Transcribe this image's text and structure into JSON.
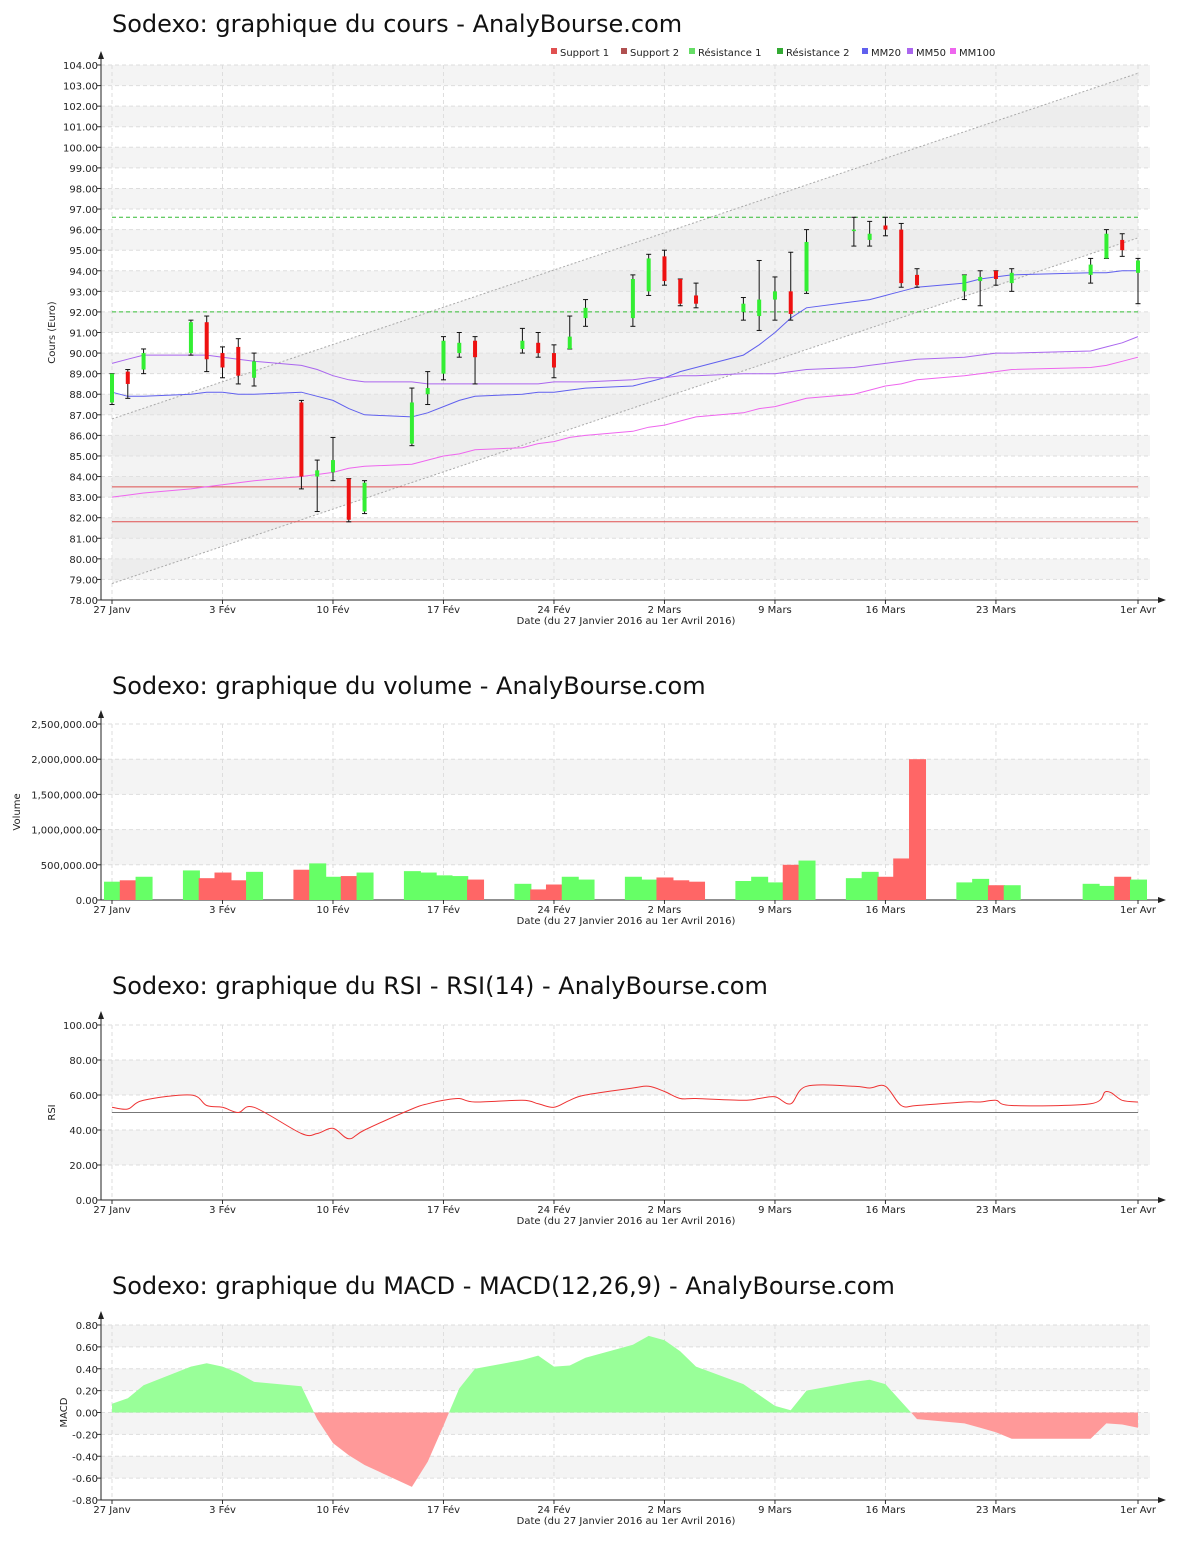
{
  "x_ticks": [
    "27 Janv",
    "3 Fév",
    "10 Fév",
    "17 Fév",
    "24 Fév",
    "2 Mars",
    "9 Mars",
    "16 Mars",
    "23 Mars",
    "1er Avr"
  ],
  "x_axis_label": "Date (du 27 Janvier 2016 au 1er Avril 2016)",
  "dates": [
    "2016-01-27",
    "2016-01-28",
    "2016-01-29",
    "2016-02-01",
    "2016-02-02",
    "2016-02-03",
    "2016-02-04",
    "2016-02-05",
    "2016-02-08",
    "2016-02-09",
    "2016-02-10",
    "2016-02-11",
    "2016-02-12",
    "2016-02-15",
    "2016-02-16",
    "2016-02-17",
    "2016-02-18",
    "2016-02-19",
    "2016-02-22",
    "2016-02-23",
    "2016-02-24",
    "2016-02-25",
    "2016-02-26",
    "2016-02-29",
    "2016-03-01",
    "2016-03-02",
    "2016-03-03",
    "2016-03-04",
    "2016-03-07",
    "2016-03-08",
    "2016-03-09",
    "2016-03-10",
    "2016-03-11",
    "2016-03-14",
    "2016-03-15",
    "2016-03-16",
    "2016-03-17",
    "2016-03-18",
    "2016-03-21",
    "2016-03-22",
    "2016-03-23",
    "2016-03-24",
    "2016-03-29",
    "2016-03-30",
    "2016-03-31",
    "2016-04-01"
  ],
  "colors": {
    "up": "#33ee33",
    "down": "#ee1111",
    "support": "#e05050",
    "resistance": "#33bb33",
    "mm20": "#6060ee",
    "mm50": "#aa66ee",
    "mm100": "#ee66ee",
    "vol_up": "#66ff66",
    "vol_down": "#ff6666",
    "macd_pos": "#99ff99",
    "macd_neg": "#ff9999",
    "rsi": "#ee3333"
  },
  "price": {
    "title": "Sodexo: graphique du cours - AnalyBourse.com",
    "legend": [
      {
        "label": "Support 1",
        "color": "#e05050"
      },
      {
        "label": "Support 2",
        "color": "#b05050"
      },
      {
        "label": "Résistance 1",
        "color": "#66dd66"
      },
      {
        "label": "Résistance 2",
        "color": "#33aa33"
      },
      {
        "label": "MM20",
        "color": "#6060ee"
      },
      {
        "label": "MM50",
        "color": "#aa66ee"
      },
      {
        "label": "MM100",
        "color": "#ee66ee"
      }
    ],
    "y_label": "Cours (Euro)",
    "y_ticks": [
      "78.00",
      "79.00",
      "80.00",
      "81.00",
      "82.00",
      "83.00",
      "84.00",
      "85.00",
      "86.00",
      "87.00",
      "88.00",
      "89.00",
      "90.00",
      "91.00",
      "92.00",
      "93.00",
      "94.00",
      "95.00",
      "96.00",
      "97.00",
      "98.00",
      "99.00",
      "100.00",
      "101.00",
      "102.00",
      "103.00",
      "104.00"
    ]
  },
  "volume": {
    "title": "Sodexo: graphique du volume - AnalyBourse.com",
    "y_label": "Volume",
    "y_ticks": [
      "0.00",
      "500,000.00",
      "1,000,000.00",
      "1,500,000.00",
      "2,000,000.00",
      "2,500,000.00"
    ]
  },
  "rsi": {
    "title": "Sodexo: graphique du RSI - RSI(14) - AnalyBourse.com",
    "y_label": "RSI",
    "y_ticks": [
      "0.00",
      "20.00",
      "40.00",
      "60.00",
      "80.00",
      "100.00"
    ]
  },
  "macd": {
    "title": "Sodexo: graphique du MACD - MACD(12,26,9) - AnalyBourse.com",
    "y_label": "MACD",
    "y_ticks": [
      "-0.80",
      "-0.60",
      "-0.40",
      "-0.20",
      "0.00",
      "0.20",
      "0.40",
      "0.60",
      "0.80"
    ]
  },
  "chart_data": [
    {
      "type": "candlestick",
      "title": "Sodexo: graphique du cours - AnalyBourse.com",
      "xlabel": "Date (du 27 Janvier 2016 au 1er Avril 2016)",
      "ylabel": "Cours (Euro)",
      "ylim": [
        78,
        104
      ],
      "ohlc": [
        [
          87.6,
          89.0,
          87.5,
          89.0
        ],
        [
          89.1,
          89.2,
          87.8,
          88.5
        ],
        [
          89.2,
          90.2,
          89.0,
          90.0
        ],
        [
          90.0,
          91.6,
          89.9,
          91.5
        ],
        [
          91.5,
          91.8,
          89.1,
          89.7
        ],
        [
          90.0,
          90.3,
          88.8,
          89.3
        ],
        [
          90.3,
          90.7,
          88.5,
          88.9
        ],
        [
          88.8,
          90.0,
          88.4,
          89.6
        ],
        [
          87.6,
          87.7,
          83.4,
          84.0
        ],
        [
          84.0,
          84.8,
          82.3,
          84.3
        ],
        [
          84.2,
          85.9,
          83.8,
          84.8
        ],
        [
          83.9,
          83.9,
          81.8,
          81.9
        ],
        [
          82.3,
          83.8,
          82.2,
          83.7
        ],
        [
          85.6,
          88.3,
          85.5,
          87.6
        ],
        [
          88.0,
          89.1,
          87.5,
          88.3
        ],
        [
          89.0,
          90.8,
          88.7,
          90.6
        ],
        [
          90.0,
          91.0,
          89.8,
          90.5
        ],
        [
          90.6,
          90.8,
          88.5,
          89.8
        ],
        [
          90.2,
          91.2,
          90.0,
          90.6
        ],
        [
          90.5,
          91.0,
          89.8,
          90.0
        ],
        [
          90.0,
          90.4,
          88.8,
          89.3
        ],
        [
          90.2,
          91.8,
          90.2,
          90.8
        ],
        [
          91.7,
          92.6,
          91.3,
          92.2
        ],
        [
          91.7,
          93.8,
          91.3,
          93.6
        ],
        [
          93.0,
          94.8,
          92.8,
          94.6
        ],
        [
          94.7,
          95.0,
          93.3,
          93.5
        ],
        [
          93.6,
          93.6,
          92.3,
          92.4
        ],
        [
          92.8,
          93.4,
          92.2,
          92.4
        ],
        [
          92.0,
          92.7,
          91.6,
          92.4
        ],
        [
          91.8,
          94.5,
          91.1,
          92.6
        ],
        [
          92.6,
          93.7,
          91.6,
          93.0
        ],
        [
          93.0,
          94.9,
          91.6,
          91.9
        ],
        [
          93.0,
          96.0,
          92.9,
          95.4
        ],
        [
          96.0,
          96.6,
          95.2,
          96.0
        ],
        [
          95.5,
          96.4,
          95.2,
          95.8
        ],
        [
          96.2,
          96.6,
          95.7,
          96.0
        ],
        [
          96.0,
          96.3,
          93.2,
          93.4
        ],
        [
          93.8,
          94.1,
          93.2,
          93.3
        ],
        [
          93.0,
          93.8,
          92.6,
          93.8
        ],
        [
          93.5,
          94.0,
          92.3,
          93.7
        ],
        [
          94.0,
          94.0,
          93.3,
          93.6
        ],
        [
          93.4,
          94.1,
          93.0,
          93.9
        ],
        [
          93.8,
          94.6,
          93.4,
          94.3
        ],
        [
          94.6,
          96.0,
          94.6,
          95.8
        ],
        [
          95.5,
          95.8,
          94.7,
          95.0
        ],
        [
          93.9,
          94.6,
          92.4,
          94.5
        ]
      ],
      "series": [
        {
          "name": "MM20",
          "values": [
            88.1,
            87.9,
            87.9,
            88.0,
            88.1,
            88.1,
            88.0,
            88.0,
            88.1,
            87.9,
            87.7,
            87.3,
            87.0,
            86.9,
            87.1,
            87.4,
            87.7,
            87.9,
            88.0,
            88.1,
            88.1,
            88.2,
            88.3,
            88.4,
            88.6,
            88.8,
            89.1,
            89.3,
            89.9,
            90.4,
            91.0,
            91.7,
            92.2,
            92.5,
            92.6,
            92.8,
            93.0,
            93.2,
            93.4,
            93.6,
            93.7,
            93.8,
            93.9,
            93.9,
            94.0,
            94.0
          ]
        },
        {
          "name": "MM50",
          "values": [
            89.5,
            89.7,
            89.9,
            89.9,
            89.9,
            89.8,
            89.7,
            89.6,
            89.4,
            89.2,
            88.9,
            88.7,
            88.6,
            88.6,
            88.5,
            88.5,
            88.5,
            88.5,
            88.5,
            88.5,
            88.6,
            88.6,
            88.6,
            88.7,
            88.8,
            88.8,
            88.9,
            88.9,
            89.0,
            89.0,
            89.0,
            89.1,
            89.2,
            89.3,
            89.4,
            89.5,
            89.6,
            89.7,
            89.8,
            89.9,
            90.0,
            90.0,
            90.1,
            90.3,
            90.5,
            90.8
          ]
        },
        {
          "name": "MM100",
          "values": [
            83.0,
            83.1,
            83.2,
            83.4,
            83.5,
            83.6,
            83.7,
            83.8,
            84.0,
            84.1,
            84.2,
            84.4,
            84.5,
            84.6,
            84.8,
            85.0,
            85.1,
            85.3,
            85.4,
            85.6,
            85.7,
            85.9,
            86.0,
            86.2,
            86.4,
            86.5,
            86.7,
            86.9,
            87.1,
            87.3,
            87.4,
            87.6,
            87.8,
            88.0,
            88.2,
            88.4,
            88.5,
            88.7,
            88.9,
            89.0,
            89.1,
            89.2,
            89.3,
            89.4,
            89.6,
            89.8
          ]
        }
      ],
      "support_levels": [
        83.5,
        81.8
      ],
      "resistance_levels": [
        96.6,
        92.0
      ],
      "trend_channel": {
        "upper": [
          86.8,
          103.6
        ],
        "lower": [
          78.8,
          95.6
        ]
      }
    },
    {
      "type": "bar",
      "title": "Sodexo: graphique du volume - AnalyBourse.com",
      "xlabel": "Date (du 27 Janvier 2016 au 1er Avril 2016)",
      "ylabel": "Volume",
      "ylim": [
        0,
        2500000
      ],
      "values": [
        260000,
        280000,
        330000,
        420000,
        310000,
        390000,
        280000,
        400000,
        430000,
        520000,
        330000,
        340000,
        390000,
        410000,
        390000,
        350000,
        340000,
        290000,
        230000,
        150000,
        220000,
        330000,
        290000,
        330000,
        290000,
        320000,
        280000,
        260000,
        270000,
        330000,
        250000,
        500000,
        560000,
        310000,
        400000,
        330000,
        590000,
        2000000,
        250000,
        300000,
        210000,
        210000,
        230000,
        200000,
        330000,
        290000
      ]
    },
    {
      "type": "line",
      "title": "Sodexo: graphique du RSI - RSI(14) - AnalyBourse.com",
      "xlabel": "Date (du 27 Janvier 2016 au 1er Avril 2016)",
      "ylabel": "RSI",
      "ylim": [
        0,
        100
      ],
      "reference_line": 50,
      "values": [
        53,
        52,
        57,
        60,
        54,
        53,
        50,
        53,
        38,
        38,
        41,
        35,
        40,
        52,
        55,
        57,
        58,
        56,
        57,
        55,
        53,
        57,
        60,
        64,
        65,
        62,
        58,
        58,
        57,
        58,
        59,
        55,
        65,
        65,
        64,
        65,
        54,
        54,
        56,
        56,
        57,
        54,
        55,
        62,
        57,
        56
      ]
    },
    {
      "type": "area",
      "title": "Sodexo: graphique du MACD - MACD(12,26,9) - AnalyBourse.com",
      "xlabel": "Date (du 27 Janvier 2016 au 1er Avril 2016)",
      "ylabel": "MACD",
      "ylim": [
        -0.8,
        0.8
      ],
      "values": [
        0.08,
        0.13,
        0.25,
        0.42,
        0.45,
        0.42,
        0.36,
        0.28,
        0.24,
        -0.06,
        -0.28,
        -0.39,
        -0.48,
        -0.68,
        -0.45,
        -0.12,
        0.22,
        0.4,
        0.48,
        0.52,
        0.42,
        0.43,
        0.5,
        0.62,
        0.7,
        0.66,
        0.56,
        0.42,
        0.26,
        0.16,
        0.06,
        0.02,
        0.2,
        0.28,
        0.3,
        0.26,
        0.1,
        -0.06,
        -0.1,
        -0.14,
        -0.18,
        -0.24,
        -0.24,
        -0.1,
        -0.11,
        -0.14
      ]
    }
  ]
}
